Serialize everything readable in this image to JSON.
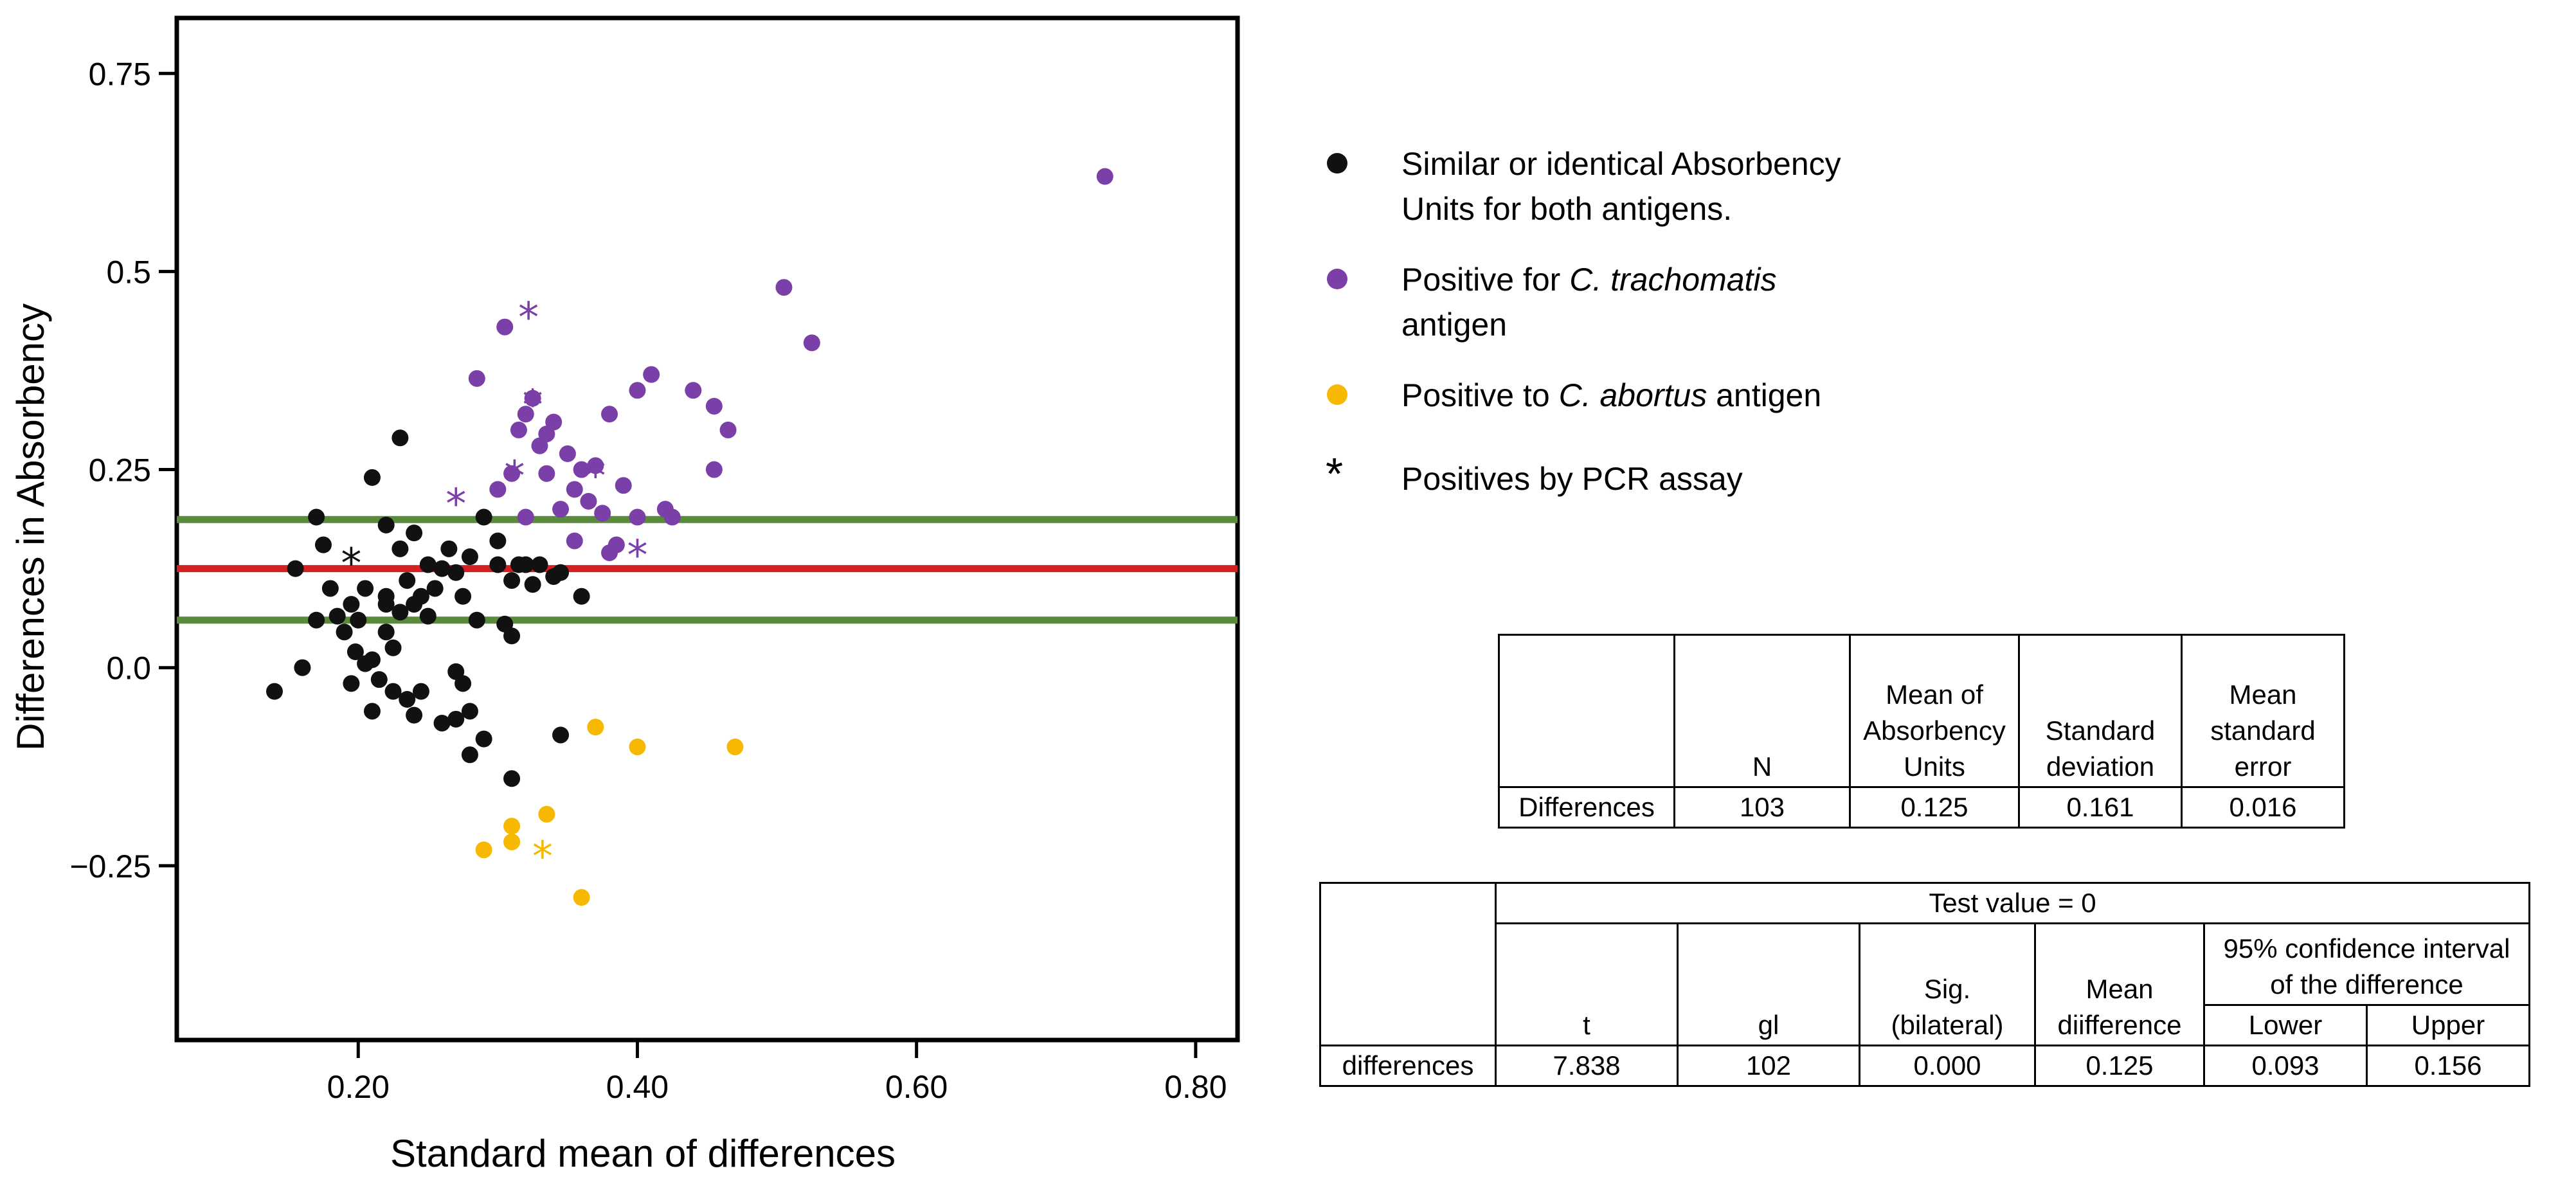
{
  "chart_data": {
    "type": "scatter",
    "xlabel": "Standard mean of differences",
    "ylabel": "Differences in  Absorbency",
    "xlim": [
      0.07,
      0.83
    ],
    "ylim": [
      -0.47,
      0.82
    ],
    "xticks": [
      "0.20",
      "0.40",
      "0.60",
      "0.80"
    ],
    "xtick_values": [
      0.2,
      0.4,
      0.6,
      0.8
    ],
    "yticks": [
      "0.75",
      "0.5",
      "0.25",
      "0.0",
      "−0.25"
    ],
    "ytick_values": [
      0.75,
      0.5,
      0.25,
      0.0,
      -0.25
    ],
    "reference_lines": [
      {
        "name": "upper-limit",
        "y": 0.187,
        "color": "#5a8a3c"
      },
      {
        "name": "mean-difference",
        "y": 0.125,
        "color": "#d42020"
      },
      {
        "name": "lower-limit",
        "y": 0.06,
        "color": "#5a8a3c"
      }
    ],
    "series": [
      {
        "name": "Similar or identical Absorbency Units for both antigens.",
        "color": "#111111",
        "points": [
          [
            0.14,
            -0.03
          ],
          [
            0.155,
            0.125
          ],
          [
            0.16,
            0.0
          ],
          [
            0.17,
            0.19
          ],
          [
            0.17,
            0.06
          ],
          [
            0.175,
            0.155
          ],
          [
            0.18,
            0.1
          ],
          [
            0.185,
            0.065
          ],
          [
            0.19,
            0.045
          ],
          [
            0.195,
            0.08
          ],
          [
            0.195,
            -0.02
          ],
          [
            0.198,
            0.02
          ],
          [
            0.2,
            0.06
          ],
          [
            0.205,
            0.1
          ],
          [
            0.205,
            0.005
          ],
          [
            0.21,
            0.24
          ],
          [
            0.21,
            0.01
          ],
          [
            0.21,
            -0.055
          ],
          [
            0.215,
            -0.015
          ],
          [
            0.22,
            0.18
          ],
          [
            0.22,
            0.09
          ],
          [
            0.22,
            0.08
          ],
          [
            0.22,
            0.045
          ],
          [
            0.225,
            -0.03
          ],
          [
            0.225,
            0.025
          ],
          [
            0.23,
            0.29
          ],
          [
            0.23,
            0.15
          ],
          [
            0.23,
            0.07
          ],
          [
            0.235,
            0.11
          ],
          [
            0.235,
            -0.04
          ],
          [
            0.24,
            0.17
          ],
          [
            0.24,
            0.08
          ],
          [
            0.24,
            -0.06
          ],
          [
            0.245,
            0.09
          ],
          [
            0.245,
            -0.03
          ],
          [
            0.25,
            0.13
          ],
          [
            0.25,
            0.065
          ],
          [
            0.255,
            0.1
          ],
          [
            0.26,
            0.125
          ],
          [
            0.26,
            -0.07
          ],
          [
            0.265,
            0.15
          ],
          [
            0.27,
            0.12
          ],
          [
            0.27,
            -0.005
          ],
          [
            0.27,
            -0.065
          ],
          [
            0.275,
            0.09
          ],
          [
            0.275,
            -0.02
          ],
          [
            0.28,
            0.14
          ],
          [
            0.28,
            -0.11
          ],
          [
            0.28,
            -0.055
          ],
          [
            0.285,
            0.06
          ],
          [
            0.29,
            0.19
          ],
          [
            0.29,
            -0.09
          ],
          [
            0.3,
            0.16
          ],
          [
            0.3,
            0.13
          ],
          [
            0.305,
            0.055
          ],
          [
            0.31,
            0.11
          ],
          [
            0.31,
            -0.14
          ],
          [
            0.31,
            0.04
          ],
          [
            0.315,
            0.13
          ],
          [
            0.32,
            0.13
          ],
          [
            0.325,
            0.105
          ],
          [
            0.33,
            0.13
          ],
          [
            0.34,
            0.115
          ],
          [
            0.345,
            0.12
          ],
          [
            0.345,
            -0.085
          ],
          [
            0.36,
            0.09
          ]
        ],
        "asterisks": [
          [
            0.195,
            0.135
          ]
        ]
      },
      {
        "name": "Positive for C. trachomatis antigen",
        "color": "#7b3fa8",
        "points": [
          [
            0.285,
            0.365
          ],
          [
            0.3,
            0.225
          ],
          [
            0.305,
            0.43
          ],
          [
            0.31,
            0.245
          ],
          [
            0.315,
            0.3
          ],
          [
            0.32,
            0.32
          ],
          [
            0.32,
            0.19
          ],
          [
            0.325,
            0.34
          ],
          [
            0.33,
            0.28
          ],
          [
            0.335,
            0.295
          ],
          [
            0.335,
            0.245
          ],
          [
            0.34,
            0.31
          ],
          [
            0.345,
            0.2
          ],
          [
            0.35,
            0.27
          ],
          [
            0.355,
            0.225
          ],
          [
            0.355,
            0.16
          ],
          [
            0.36,
            0.25
          ],
          [
            0.365,
            0.21
          ],
          [
            0.37,
            0.255
          ],
          [
            0.375,
            0.195
          ],
          [
            0.38,
            0.32
          ],
          [
            0.38,
            0.145
          ],
          [
            0.385,
            0.155
          ],
          [
            0.39,
            0.23
          ],
          [
            0.4,
            0.35
          ],
          [
            0.4,
            0.19
          ],
          [
            0.41,
            0.37
          ],
          [
            0.42,
            0.2
          ],
          [
            0.425,
            0.19
          ],
          [
            0.44,
            0.35
          ],
          [
            0.455,
            0.25
          ],
          [
            0.455,
            0.33
          ],
          [
            0.465,
            0.3
          ],
          [
            0.505,
            0.48
          ],
          [
            0.525,
            0.41
          ],
          [
            0.735,
            0.62
          ]
        ],
        "asterisks": [
          [
            0.322,
            0.445
          ],
          [
            0.325,
            0.335
          ],
          [
            0.27,
            0.21
          ],
          [
            0.312,
            0.245
          ],
          [
            0.37,
            0.245
          ],
          [
            0.4,
            0.145
          ]
        ]
      },
      {
        "name": "Positive to C. abortus antigen",
        "color": "#f6b800",
        "points": [
          [
            0.29,
            -0.23
          ],
          [
            0.31,
            -0.2
          ],
          [
            0.31,
            -0.22
          ],
          [
            0.335,
            -0.185
          ],
          [
            0.36,
            -0.29
          ],
          [
            0.37,
            -0.075
          ],
          [
            0.4,
            -0.1
          ],
          [
            0.47,
            -0.1
          ]
        ],
        "asterisks": [
          [
            0.332,
            -0.235
          ]
        ]
      }
    ]
  },
  "legend": {
    "items": [
      {
        "lines": [
          "Similar or identical Absorbency",
          "Units for both antigens."
        ],
        "color": "#111111",
        "symbol": "dot"
      },
      {
        "prefix": "Positive for ",
        "italic": "C. trachomatis",
        "line2": "antigen",
        "color": "#7b3fa8",
        "symbol": "dot"
      },
      {
        "prefix": "Positive to ",
        "italic": "C. abortus",
        "suffix": " antigen",
        "color": "#f6b800",
        "symbol": "dot"
      },
      {
        "text": "Positives by PCR assay",
        "symbol": "*"
      }
    ]
  },
  "table1": {
    "headers": {
      "n": "N",
      "mean_line1": "Mean of",
      "mean_line2": "Absorbency",
      "mean_line3": "Units",
      "sd_line1": "Standard",
      "sd_line2": "deviation",
      "se_line1": "Mean",
      "se_line2": "standard",
      "se_line3": "error"
    },
    "row": {
      "label": "Differences",
      "n": "103",
      "mean": "0.125",
      "sd": "0.161",
      "se": "0.016"
    }
  },
  "table2": {
    "title": "Test value = 0",
    "headers": {
      "t": "t",
      "gl": "gl",
      "sig_line1": "Sig.",
      "sig_line2": "(bilateral)",
      "md_line1": "Mean",
      "md_line2": "diifference",
      "ci_line1": "95% confidence interval",
      "ci_line2": "of the difference",
      "lower": "Lower",
      "upper": "Upper"
    },
    "row": {
      "label": "differences",
      "t": "7.838",
      "gl": "102",
      "sig": "0.000",
      "md": "0.125",
      "lower": "0.093",
      "upper": "0.156"
    }
  }
}
